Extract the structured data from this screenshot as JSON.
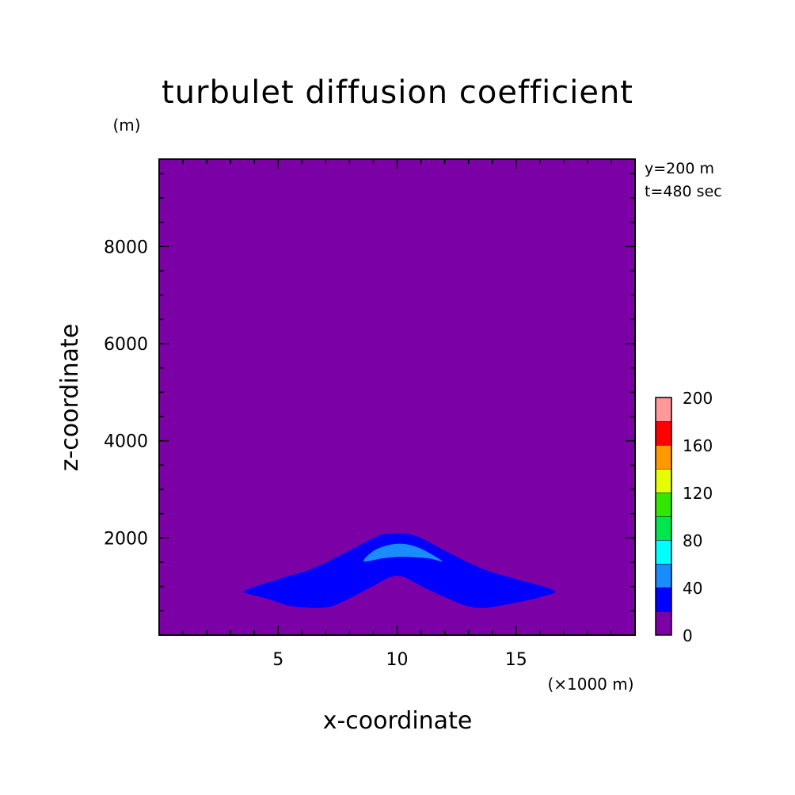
{
  "chart_data": {
    "type": "heatmap",
    "title": "turbulet diffusion coefficient",
    "xlabel": "x-coordinate",
    "ylabel": "z-coordinate",
    "x_unit": "(×1000 m)",
    "y_unit": "(m)",
    "xlim": [
      0,
      20
    ],
    "ylim": [
      0,
      9800
    ],
    "xticks": [
      5,
      10,
      15
    ],
    "yticks": [
      2000,
      4000,
      6000,
      8000
    ],
    "annotations": [
      "y=200 m",
      "t=480 sec"
    ],
    "colorbar": {
      "levels": [
        0,
        20,
        40,
        60,
        80,
        100,
        120,
        140,
        160,
        180,
        200
      ],
      "labels": [
        "0",
        "40",
        "80",
        "120",
        "160",
        "200"
      ],
      "colors": [
        "#7b00a6",
        "#0000ff",
        "#1a8cff",
        "#00ffff",
        "#00e64d",
        "#33e600",
        "#e6ff00",
        "#ff9900",
        "#ff0000",
        "#ff9999"
      ]
    },
    "contours": [
      {
        "level_range": [
          20,
          40
        ],
        "color": "#0000ff",
        "outline": [
          [
            3.6,
            920
          ],
          [
            5.0,
            1150
          ],
          [
            6.5,
            1380
          ],
          [
            8.0,
            1740
          ],
          [
            9.2,
            2040
          ],
          [
            10.0,
            2100
          ],
          [
            10.8,
            2040
          ],
          [
            12.0,
            1740
          ],
          [
            13.5,
            1380
          ],
          [
            15.0,
            1150
          ],
          [
            16.6,
            920
          ],
          [
            16.0,
            780
          ],
          [
            14.5,
            620
          ],
          [
            13.6,
            560
          ],
          [
            12.8,
            620
          ],
          [
            11.2,
            960
          ],
          [
            10.3,
            1190
          ],
          [
            9.7,
            1190
          ],
          [
            8.8,
            960
          ],
          [
            7.4,
            620
          ],
          [
            6.6,
            560
          ],
          [
            5.5,
            600
          ],
          [
            4.6,
            740
          ],
          [
            3.9,
            830
          ]
        ]
      },
      {
        "level_range": [
          40,
          60
        ],
        "color": "#1a8cff",
        "outline": [
          [
            8.6,
            1520
          ],
          [
            9.1,
            1760
          ],
          [
            10.0,
            1880
          ],
          [
            10.9,
            1800
          ],
          [
            11.9,
            1520
          ],
          [
            11.3,
            1580
          ],
          [
            10.2,
            1610
          ],
          [
            9.4,
            1580
          ]
        ]
      }
    ],
    "background": {
      "level_range": [
        0,
        20
      ],
      "color": "#7b00a6"
    }
  }
}
